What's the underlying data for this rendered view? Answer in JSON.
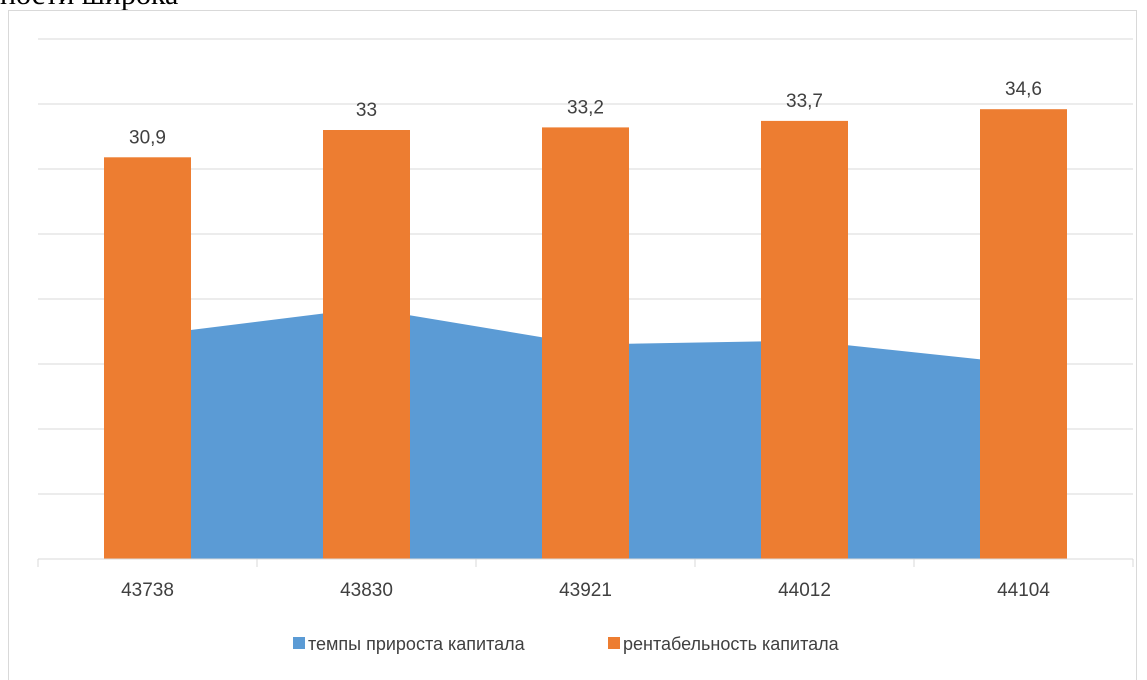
{
  "page_heading_fragment": "ности широка",
  "colors": {
    "area": "#5b9bd5",
    "bar": "#ed7d31",
    "grid": "#d9d9d9",
    "text": "#404040"
  },
  "chart_data": {
    "type": "bar",
    "categories": [
      "43738",
      "43830",
      "43921",
      "44012",
      "44104"
    ],
    "ylim": [
      0,
      40
    ],
    "grid": true,
    "legend_position": "bottom",
    "series": [
      {
        "name": "темпы прироста капитала",
        "type": "area",
        "values": [
          17.2,
          19.3,
          16.5,
          16.8,
          15.0
        ]
      },
      {
        "name": "рентабельность капитала",
        "type": "bar",
        "values": [
          30.9,
          33,
          33.2,
          33.7,
          34.6
        ],
        "data_labels": [
          "30,9",
          "33",
          "33,2",
          "33,7",
          "34,6"
        ]
      }
    ]
  }
}
